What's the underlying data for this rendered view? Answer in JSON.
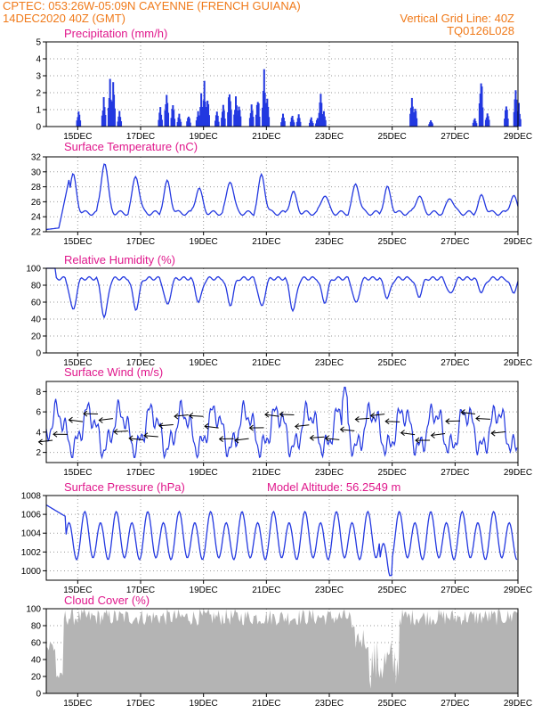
{
  "header": {
    "line1": "CPTEC:   053:26W-05:09N   CAYENNE (FRENCH GUIANA)",
    "line2_left": "14DEC2020 40Z (GMT)",
    "line2_right": "Vertical Grid Line: 40Z",
    "line3_right": "TQ0126L028"
  },
  "x_labels": [
    "15DEC",
    "17DEC",
    "19DEC",
    "21DEC",
    "23DEC",
    "25DEC",
    "27DEC",
    "29DEC"
  ],
  "colors": {
    "header": "#f07a1a",
    "title": "#e0188c",
    "line": "#2338e0",
    "bar": "#2338e0",
    "cloud": "#b4b4b4"
  },
  "chart_data": [
    {
      "type": "bar",
      "title": "Precipitation (mm/h)",
      "ylim": [
        0,
        5
      ],
      "yticks": [
        0,
        1,
        2,
        3,
        4,
        5
      ],
      "x_range_days": [
        14,
        29
      ],
      "events": [
        [
          15.0,
          1.0
        ],
        [
          15.8,
          1.8
        ],
        [
          16.0,
          3.0
        ],
        [
          16.1,
          2.8
        ],
        [
          16.3,
          1.0
        ],
        [
          17.6,
          1.2
        ],
        [
          17.8,
          2.5
        ],
        [
          18.0,
          1.5
        ],
        [
          18.2,
          0.8
        ],
        [
          18.5,
          0.8
        ],
        [
          18.8,
          1.0
        ],
        [
          18.9,
          2.0
        ],
        [
          19.0,
          3.0
        ],
        [
          19.1,
          2.0
        ],
        [
          19.4,
          1.0
        ],
        [
          19.6,
          1.5
        ],
        [
          19.8,
          2.5
        ],
        [
          20.0,
          2.0
        ],
        [
          20.1,
          1.5
        ],
        [
          20.5,
          1.5
        ],
        [
          20.7,
          2.0
        ],
        [
          20.9,
          3.6
        ],
        [
          21.0,
          2.0
        ],
        [
          21.5,
          0.8
        ],
        [
          21.8,
          0.8
        ],
        [
          22.0,
          0.8
        ],
        [
          22.4,
          0.6
        ],
        [
          22.6,
          0.6
        ],
        [
          22.7,
          2.5
        ],
        [
          22.8,
          1.0
        ],
        [
          25.6,
          2.0
        ],
        [
          25.7,
          1.5
        ],
        [
          26.2,
          0.5
        ],
        [
          27.6,
          0.6
        ],
        [
          27.8,
          3.5
        ],
        [
          28.0,
          1.0
        ],
        [
          28.6,
          1.5
        ],
        [
          28.9,
          2.5
        ],
        [
          29.0,
          1.5
        ]
      ]
    },
    {
      "type": "line",
      "title": "Surface Temperature (nC)",
      "ylim": [
        22,
        32
      ],
      "yticks": [
        22,
        24,
        26,
        28,
        30,
        32
      ],
      "x_range_days": [
        14,
        29
      ],
      "daily_max": [
        29.5,
        31.3,
        29.5,
        28.6,
        27.8,
        28.9,
        29.5,
        27.2,
        27.0,
        28.4,
        27.8,
        26.8,
        26.6,
        26.7
      ]
    },
    {
      "type": "line",
      "title": "Relative Humidity (%)",
      "ylim": [
        0,
        100
      ],
      "yticks": [
        0,
        20,
        40,
        60,
        80,
        100
      ],
      "x_range_days": [
        14,
        29
      ],
      "daily_min": [
        50,
        42,
        52,
        56,
        60,
        57,
        54,
        50,
        60,
        58,
        65,
        67,
        69,
        72
      ]
    },
    {
      "type": "line",
      "title": "Surface Wind (m/s)",
      "ylim": [
        1,
        9
      ],
      "yticks": [
        2,
        4,
        6,
        8
      ],
      "x_range_days": [
        14,
        29
      ]
    },
    {
      "type": "line",
      "title": "Surface Pressure (hPa)",
      "annotation": "Model Altitude: 56.2549 m",
      "ylim": [
        999,
        1008
      ],
      "yticks": [
        1000,
        1002,
        1004,
        1006,
        1008
      ],
      "x_range_days": [
        14,
        29
      ]
    },
    {
      "type": "area",
      "title": "Cloud Cover (%)",
      "ylim": [
        0,
        100
      ],
      "yticks": [
        0,
        20,
        40,
        60,
        80,
        100
      ],
      "x_range_days": [
        14,
        29
      ]
    }
  ]
}
